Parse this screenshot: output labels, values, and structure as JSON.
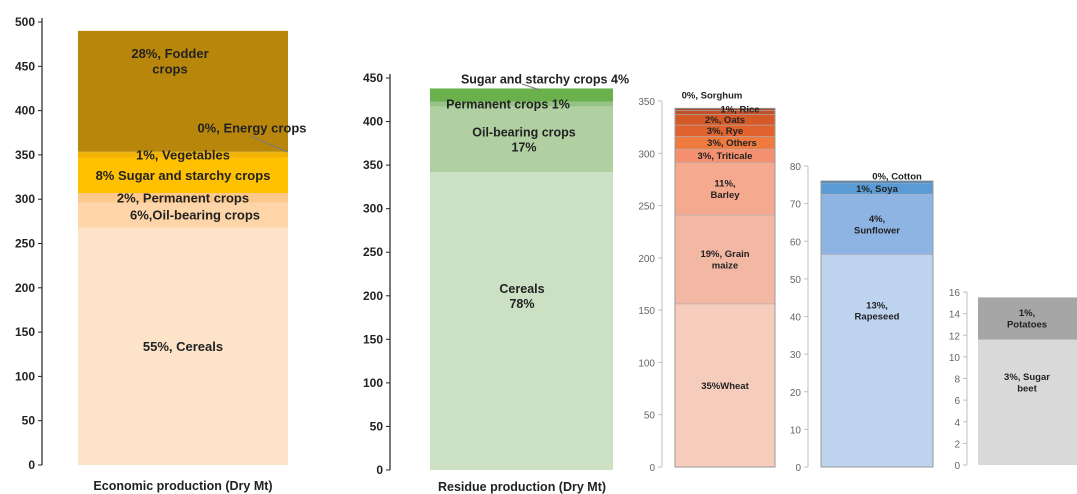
{
  "chart_data": [
    {
      "type": "bar",
      "stacked": true,
      "xlabel": "Economic production (Dry Mt)",
      "ylim": [
        0,
        500
      ],
      "yticks": [
        0,
        50,
        100,
        150,
        200,
        250,
        300,
        350,
        400,
        450,
        500
      ],
      "segments": [
        {
          "name": "Cereals",
          "value": 268,
          "label": "55%, Cereals",
          "color": "#FDE4C9"
        },
        {
          "name": "Oil-bearing crops",
          "value": 28,
          "label": "6%,Oil-bearing crops",
          "color": "#FDD5A8"
        },
        {
          "name": "Permanent crops",
          "value": 11,
          "label": "2%, Permanent crops",
          "color": "#FDC98B"
        },
        {
          "name": "Sugar and starchy crops",
          "value": 40,
          "label": "8% Sugar and starchy crops",
          "color": "#FFC000"
        },
        {
          "name": "Vegetables",
          "value": 6,
          "label": "1%, Vegetables",
          "color": "#F3B100"
        },
        {
          "name": "Energy crops",
          "value": 1,
          "label": "0%, Energy crops",
          "color": "#C49A00"
        },
        {
          "name": "Fodder crops",
          "value": 136,
          "label": "28%, Fodder crops",
          "color": "#B8860B"
        }
      ]
    },
    {
      "type": "bar",
      "stacked": true,
      "xlabel": "Residue production (Dry Mt)",
      "ylim": [
        0,
        450
      ],
      "yticks": [
        0,
        50,
        100,
        150,
        200,
        250,
        300,
        350,
        400,
        450
      ],
      "segments": [
        {
          "name": "Cereals",
          "value": 342,
          "label": "Cereals 78%",
          "color": "#CCE0C4"
        },
        {
          "name": "Oil-bearing crops",
          "value": 75,
          "label": "Oil-bearing crops 17%",
          "color": "#B0D0A2"
        },
        {
          "name": "Permanent crops",
          "value": 6,
          "label": "Permanent crops 1%",
          "color": "#95C285"
        },
        {
          "name": "Sugar and starchy crops",
          "value": 15,
          "label": "Sugar and starchy crops 4%",
          "color": "#6AB04C"
        }
      ]
    },
    {
      "type": "bar",
      "stacked": true,
      "xlabel": "",
      "ylim": [
        0,
        350
      ],
      "yticks": [
        0,
        50,
        100,
        150,
        200,
        250,
        300,
        350
      ],
      "segments": [
        {
          "name": "Wheat",
          "value": 156,
          "label": "35%Wheat",
          "color": "#F6CDBC"
        },
        {
          "name": "Grain maize",
          "value": 85,
          "label": "19%, Grain maize",
          "color": "#F3B8A3"
        },
        {
          "name": "Barley",
          "value": 50,
          "label": "11%, Barley",
          "color": "#F5A98E"
        },
        {
          "name": "Triticale",
          "value": 13,
          "label": "3%, Triticale",
          "color": "#F59070"
        },
        {
          "name": "Others",
          "value": 12,
          "label": "3%, Others",
          "color": "#EE7A3E"
        },
        {
          "name": "Rye",
          "value": 11,
          "label": "3%, Rye",
          "color": "#E2622E"
        },
        {
          "name": "Oats",
          "value": 10,
          "label": "2%, Oats",
          "color": "#D65A28"
        },
        {
          "name": "Rice",
          "value": 4,
          "label": "1%, Rice",
          "color": "#C0502A"
        },
        {
          "name": "Sorghum",
          "value": 2,
          "label": "0%, Sorghum",
          "color": "#A54422"
        }
      ]
    },
    {
      "type": "bar",
      "stacked": true,
      "xlabel": "",
      "ylim": [
        0,
        80
      ],
      "yticks": [
        0,
        10,
        20,
        30,
        40,
        50,
        60,
        70,
        80
      ],
      "segments": [
        {
          "name": "Rapeseed",
          "value": 56.5,
          "label": "13%, Rapeseed",
          "color": "#BDD3EE"
        },
        {
          "name": "Sunflower",
          "value": 16,
          "label": "4%, Sunflower",
          "color": "#8EB4E3"
        },
        {
          "name": "Soya",
          "value": 3,
          "label": "1%, Soya",
          "color": "#5B9BD5"
        },
        {
          "name": "Cotton",
          "value": 0.5,
          "label": "0%, Cotton",
          "color": "#2E75B6"
        }
      ]
    },
    {
      "type": "bar",
      "stacked": true,
      "xlabel": "",
      "ylim": [
        0,
        16
      ],
      "yticks": [
        0,
        2,
        4,
        6,
        8,
        10,
        12,
        14,
        16
      ],
      "segments": [
        {
          "name": "Sugar beet",
          "value": 11.6,
          "label": "3%, Sugar beet",
          "color": "#D9D9D9"
        },
        {
          "name": "Potatoes",
          "value": 3.9,
          "label": "1%, Potatoes",
          "color": "#A6A6A6"
        }
      ]
    }
  ]
}
